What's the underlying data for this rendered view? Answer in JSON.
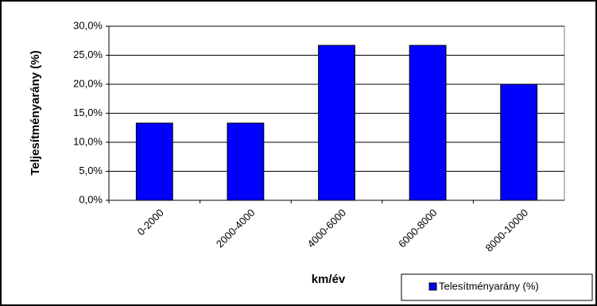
{
  "chart_data": {
    "type": "bar",
    "x_label": "km/év",
    "y_label": "Teljesítményarány (%)",
    "categories": [
      "0-2000",
      "2000-4000",
      "4000-6000",
      "6000-8000",
      "8000-10000"
    ],
    "series": [
      {
        "name": "Telesítményarány (%)",
        "color": "#0000ff",
        "values": [
          13.3,
          13.3,
          26.7,
          26.7,
          20.0
        ]
      }
    ],
    "ylim": [
      0,
      30
    ],
    "yticks": [
      {
        "value": 0,
        "label": "0,0%"
      },
      {
        "value": 5,
        "label": "5,0%"
      },
      {
        "value": 10,
        "label": "10,0%"
      },
      {
        "value": 15,
        "label": "15,0%"
      },
      {
        "value": 20,
        "label": "20,0%"
      },
      {
        "value": 25,
        "label": "25,0%"
      },
      {
        "value": 30,
        "label": "30,0%"
      }
    ],
    "grid": true,
    "legend": "bottom-right"
  }
}
